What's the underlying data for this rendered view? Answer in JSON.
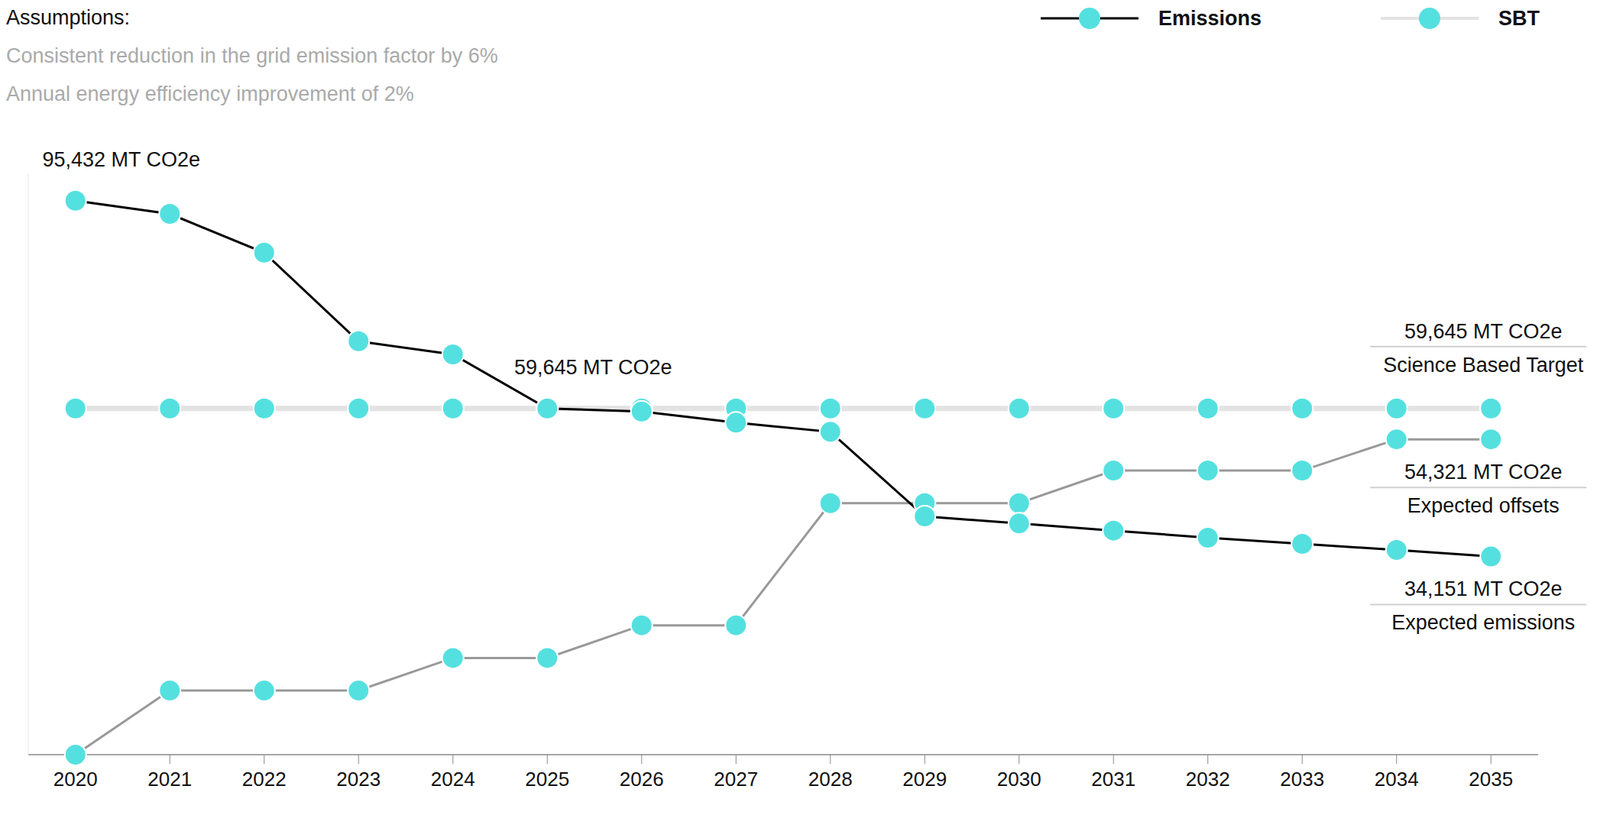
{
  "chart_data": {
    "type": "line",
    "title": "Assumptions:",
    "subtitle": [
      "Consistent reduction in the grid emission factor by 6%",
      "Annual energy efficiency improvement of 2%"
    ],
    "x": [
      2020,
      2021,
      2022,
      2023,
      2024,
      2025,
      2026,
      2027,
      2028,
      2029,
      2030,
      2031,
      2032,
      2033,
      2034,
      2035
    ],
    "xlim": [
      2019.5,
      2035.5
    ],
    "xticks": [
      2020,
      2021,
      2022,
      2023,
      2024,
      2025,
      2026,
      2027,
      2028,
      2029,
      2030,
      2031,
      2032,
      2033,
      2034,
      2035
    ],
    "ylim": [
      0,
      100000
    ],
    "yticks": [],
    "tick_labels": "x",
    "grid": false,
    "legend": "top-right",
    "marker": "circle",
    "series": [
      {
        "name": "Emissions",
        "color": "#000000",
        "values": [
          95432,
          93150,
          86480,
          71220,
          68940,
          59645,
          59120,
          57190,
          55610,
          41050,
          39820,
          38600,
          37370,
          36320,
          35260,
          34151
        ]
      },
      {
        "name": "SBT",
        "color": "#e3e3e3",
        "values": [
          59645,
          59645,
          59645,
          59645,
          59645,
          59645,
          59645,
          59645,
          59645,
          59645,
          59645,
          59645,
          59645,
          59645,
          59645,
          59645
        ]
      },
      {
        "name": null,
        "color": "#999999",
        "values": [
          0,
          11050,
          11050,
          11050,
          16660,
          16660,
          22280,
          22280,
          43320,
          43320,
          43320,
          48940,
          48940,
          48940,
          54321,
          54321
        ]
      }
    ],
    "annotations": [
      {
        "x": 2020,
        "y": 95432,
        "text": "95,432 MT CO2e"
      },
      {
        "x": 2025,
        "y": 59645,
        "text": "59,645 MT CO2e"
      },
      {
        "x": 2035,
        "y": 59645,
        "text": "59,645 MT CO2e",
        "subtext": "Science Based Target"
      },
      {
        "x": 2035,
        "y": 54321,
        "text": "54,321 MT CO2e",
        "subtext": "Expected offsets"
      },
      {
        "x": 2035,
        "y": 34151,
        "text": "34,151 MT CO2e",
        "subtext": "Expected emissions"
      }
    ]
  }
}
